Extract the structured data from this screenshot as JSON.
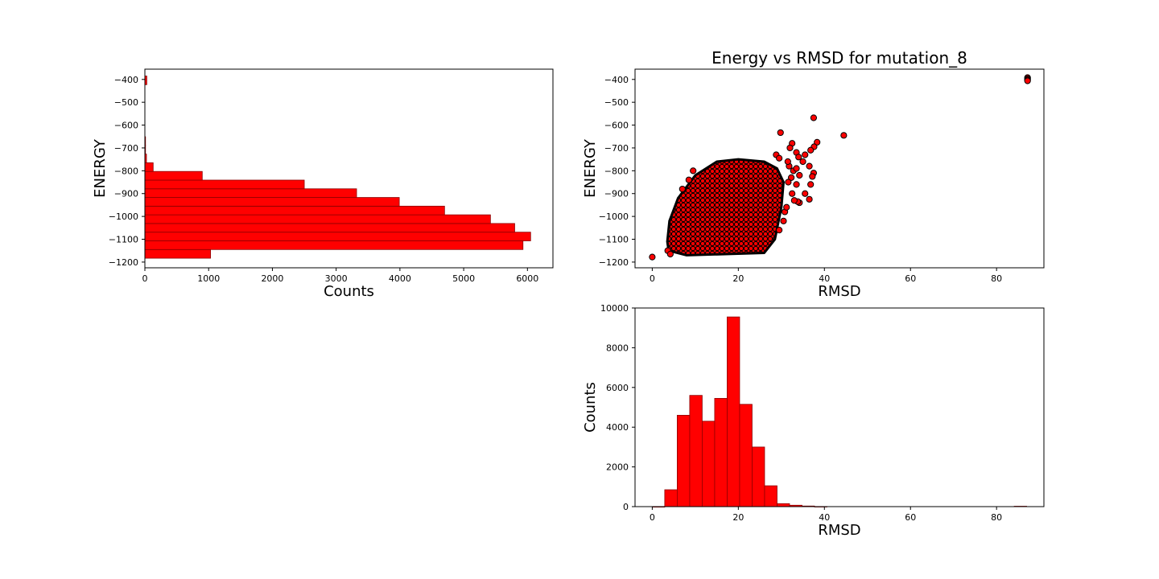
{
  "colors": {
    "bar_fill": "#ff0000",
    "bar_edge": "#8b0000",
    "point_fill": "#ff0000",
    "point_edge": "#000000",
    "axis": "#000000"
  },
  "chart_data": [
    {
      "id": "energy_hist",
      "type": "bar",
      "orientation": "horizontal",
      "title": "",
      "xlabel": "Counts",
      "ylabel": "ENERGY",
      "xlim": [
        0,
        6400
      ],
      "ylim": [
        -1225,
        -355
      ],
      "xticks": [
        0,
        1000,
        2000,
        3000,
        4000,
        5000,
        6000
      ],
      "yticks": [
        -1200,
        -1100,
        -1000,
        -900,
        -800,
        -700,
        -600,
        -500,
        -400
      ],
      "bin_width": 38,
      "bins": [
        {
          "energy_from": -1183,
          "energy_to": -1145,
          "count": 1030
        },
        {
          "energy_from": -1145,
          "energy_to": -1107,
          "count": 5930
        },
        {
          "energy_from": -1107,
          "energy_to": -1069,
          "count": 6050
        },
        {
          "energy_from": -1069,
          "energy_to": -1031,
          "count": 5800
        },
        {
          "energy_from": -1031,
          "energy_to": -993,
          "count": 5420
        },
        {
          "energy_from": -993,
          "energy_to": -955,
          "count": 4700
        },
        {
          "energy_from": -955,
          "energy_to": -917,
          "count": 3990
        },
        {
          "energy_from": -917,
          "energy_to": -879,
          "count": 3320
        },
        {
          "energy_from": -879,
          "energy_to": -841,
          "count": 2500
        },
        {
          "energy_from": -841,
          "energy_to": -803,
          "count": 900
        },
        {
          "energy_from": -803,
          "energy_to": -765,
          "count": 130
        },
        {
          "energy_from": -765,
          "energy_to": -727,
          "count": 25
        },
        {
          "energy_from": -727,
          "energy_to": -689,
          "count": 10
        },
        {
          "energy_from": -689,
          "energy_to": -651,
          "count": 5
        },
        {
          "energy_from": -423,
          "energy_to": -385,
          "count": 30
        }
      ]
    },
    {
      "id": "energy_vs_rmsd",
      "type": "scatter",
      "title": "Energy vs RMSD for mutation_8",
      "xlabel": "RMSD",
      "ylabel": "ENERGY",
      "xlim": [
        -4,
        91
      ],
      "ylim": [
        -1225,
        -355
      ],
      "xticks": [
        0,
        20,
        40,
        60,
        80
      ],
      "yticks": [
        -1200,
        -1100,
        -1000,
        -900,
        -800,
        -700,
        -600,
        -500,
        -400
      ],
      "cloud": {
        "description_free": true,
        "vertices": [
          [
            3.5,
            -1110
          ],
          [
            3.8,
            -1150
          ],
          [
            8,
            -1170
          ],
          [
            26,
            -1160
          ],
          [
            28.5,
            -1100
          ],
          [
            30,
            -960
          ],
          [
            30.5,
            -850
          ],
          [
            29,
            -790
          ],
          [
            26,
            -760
          ],
          [
            20,
            -750
          ],
          [
            15,
            -760
          ],
          [
            10,
            -820
          ],
          [
            6,
            -920
          ],
          [
            4,
            -1020
          ]
        ]
      },
      "points": [
        [
          0,
          -1178
        ],
        [
          3.6,
          -1150
        ],
        [
          4.2,
          -1165
        ],
        [
          9.5,
          -800
        ],
        [
          8.5,
          -840
        ],
        [
          7,
          -880
        ],
        [
          29.8,
          -633
        ],
        [
          37.5,
          -568
        ],
        [
          44.5,
          -645
        ],
        [
          38.3,
          -675
        ],
        [
          37.6,
          -695
        ],
        [
          36.8,
          -710
        ],
        [
          35.5,
          -730
        ],
        [
          33.5,
          -720
        ],
        [
          32.5,
          -680
        ],
        [
          32,
          -700
        ],
        [
          34,
          -740
        ],
        [
          35,
          -760
        ],
        [
          36.5,
          -780
        ],
        [
          37.5,
          -810
        ],
        [
          37.2,
          -825
        ],
        [
          36.8,
          -860
        ],
        [
          35.5,
          -900
        ],
        [
          36.5,
          -925
        ],
        [
          34.2,
          -940
        ],
        [
          33.8,
          -935
        ],
        [
          33,
          -930
        ],
        [
          32.5,
          -900
        ],
        [
          33.5,
          -860
        ],
        [
          34.2,
          -820
        ],
        [
          32.8,
          -800
        ],
        [
          33.5,
          -790
        ],
        [
          31.8,
          -780
        ],
        [
          31.5,
          -760
        ],
        [
          32.3,
          -830
        ],
        [
          31.6,
          -850
        ],
        [
          30.8,
          -980
        ],
        [
          31.2,
          -960
        ],
        [
          30.5,
          -1020
        ],
        [
          29.5,
          -1060
        ],
        [
          28.8,
          -730
        ],
        [
          29.5,
          -745
        ],
        [
          87.2,
          -392
        ],
        [
          87.2,
          -397
        ],
        [
          87.2,
          -402
        ],
        [
          87.2,
          -406
        ]
      ]
    },
    {
      "id": "rmsd_hist",
      "type": "bar",
      "orientation": "vertical",
      "title": "",
      "xlabel": "RMSD",
      "ylabel": "Counts",
      "xlim": [
        -4,
        91
      ],
      "ylim": [
        0,
        10000
      ],
      "xticks": [
        0,
        20,
        40,
        60,
        80
      ],
      "yticks": [
        0,
        2000,
        4000,
        6000,
        8000,
        10000
      ],
      "bins": [
        {
          "rmsd_from": 0,
          "rmsd_to": 2.9,
          "count": 0
        },
        {
          "rmsd_from": 2.9,
          "rmsd_to": 5.8,
          "count": 850
        },
        {
          "rmsd_from": 5.8,
          "rmsd_to": 8.7,
          "count": 4600
        },
        {
          "rmsd_from": 8.7,
          "rmsd_to": 11.6,
          "count": 5600
        },
        {
          "rmsd_from": 11.6,
          "rmsd_to": 14.5,
          "count": 4300
        },
        {
          "rmsd_from": 14.5,
          "rmsd_to": 17.4,
          "count": 5450
        },
        {
          "rmsd_from": 17.4,
          "rmsd_to": 20.3,
          "count": 9550
        },
        {
          "rmsd_from": 20.3,
          "rmsd_to": 23.2,
          "count": 5150
        },
        {
          "rmsd_from": 23.2,
          "rmsd_to": 26.1,
          "count": 3000
        },
        {
          "rmsd_from": 26.1,
          "rmsd_to": 29.0,
          "count": 1050
        },
        {
          "rmsd_from": 29.0,
          "rmsd_to": 31.9,
          "count": 150
        },
        {
          "rmsd_from": 31.9,
          "rmsd_to": 34.8,
          "count": 70
        },
        {
          "rmsd_from": 34.8,
          "rmsd_to": 37.7,
          "count": 30
        },
        {
          "rmsd_from": 37.7,
          "rmsd_to": 40.6,
          "count": 5
        },
        {
          "rmsd_from": 84.1,
          "rmsd_to": 87.0,
          "count": 20
        }
      ]
    }
  ]
}
